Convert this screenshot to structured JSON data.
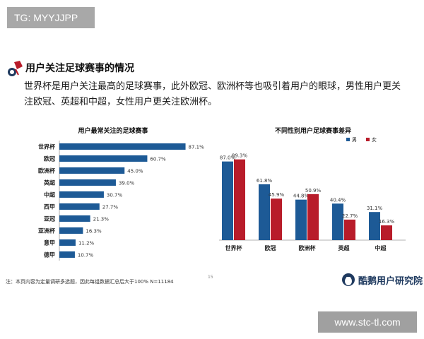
{
  "tg_badge": "TG: MYYJJPP",
  "section_title": "用户关注足球赛事的情况",
  "intro_text": "世界杯是用户关注最高的足球赛事，此外欧冠、欧洲杯等也吸引着用户的眼球，男性用户更关注欧冠、英超和中超，女性用户更关注欧洲杯。",
  "note": "注：本页内容为定量调研多选题，因此每组数据汇总后大于100%  N=11184",
  "page_number": "15",
  "brand": "酷鹅用户研究院",
  "watermark": "www.stc-tl.com",
  "colors": {
    "bar_blue": "#1d5a96",
    "bar_red": "#b81c2a",
    "axis": "#999999"
  },
  "chart_data": [
    {
      "type": "bar",
      "orientation": "horizontal",
      "title": "用户最常关注的足球赛事",
      "categories": [
        "世界杯",
        "欧冠",
        "欧洲杯",
        "英超",
        "中超",
        "西甲",
        "亚冠",
        "亚洲杯",
        "意甲",
        "德甲"
      ],
      "values": [
        87.1,
        60.7,
        45.0,
        39.0,
        30.7,
        27.7,
        21.3,
        16.3,
        11.2,
        10.7
      ],
      "value_labels": [
        "87.1%",
        "60.7%",
        "45.0%",
        "39.0%",
        "30.7%",
        "27.7%",
        "21.3%",
        "16.3%",
        "11.2%",
        "10.7%"
      ],
      "xlim": [
        0,
        100
      ]
    },
    {
      "type": "bar",
      "title": "不同性别用户足球赛事差异",
      "categories": [
        "世界杯",
        "欧冠",
        "欧洲杯",
        "英超",
        "中超"
      ],
      "series": [
        {
          "name": "男",
          "color": "#1d5a96",
          "values": [
            87.0,
            61.8,
            44.8,
            40.4,
            31.1
          ],
          "labels": [
            "87.0%",
            "61.8%",
            "44.8%",
            "40.4%",
            "31.1%"
          ]
        },
        {
          "name": "女",
          "color": "#b81c2a",
          "values": [
            89.3,
            45.9,
            50.9,
            22.7,
            16.3
          ],
          "labels": [
            "89.3%",
            "45.9%",
            "50.9%",
            "22.7%",
            "16.3%"
          ]
        }
      ],
      "legend": "top-right",
      "ylim": [
        0,
        100
      ]
    }
  ]
}
